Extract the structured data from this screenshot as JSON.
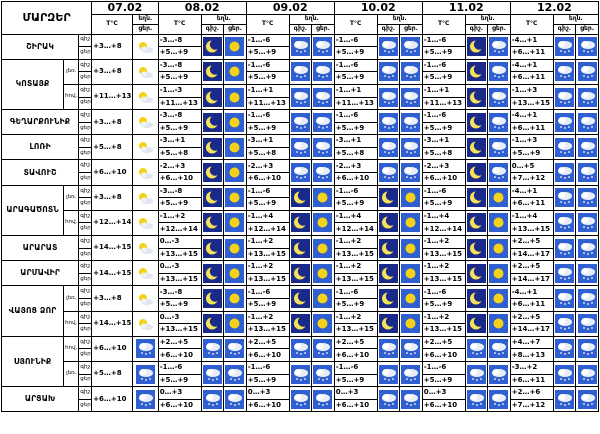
{
  "header": {
    "title": "ՄԱՐԶԵՐ",
    "col1": {
      "date": "07.02",
      "temp": "T°C",
      "weather": "եղն.",
      "day": "ցեր."
    },
    "dates": [
      "08.02",
      "09.02",
      "10.02",
      "11.02",
      "12.02"
    ],
    "temp_label": "T°C",
    "weather_label": "եղն.",
    "night_label": "գիշ.",
    "day_label": "ցեր."
  },
  "rows": [
    {
      "region": "ՇԻՐԱԿ",
      "sub": "",
      "span": 2,
      "l1": "գիշ.",
      "l2": "ցեր.",
      "d1": "+3…+8",
      "i1": "sun-cloud",
      "days": [
        {
          "n": "-3…-8",
          "d": "+5…+9",
          "in": "moon",
          "id": "sun"
        },
        {
          "n": "-1…-6",
          "d": "+5…+9",
          "in": "snowcloud",
          "id": "snowcloud"
        },
        {
          "n": "-1…-6",
          "d": "+5…+9",
          "in": "snowcloud",
          "id": "snowcloud"
        },
        {
          "n": "-1…-6",
          "d": "+5…+9",
          "in": "moon",
          "id": "snowcloud"
        },
        {
          "n": "-4…+1",
          "d": "+6…+11",
          "in": "snowcloud",
          "id": "snowcloud"
        }
      ]
    },
    {
      "region": "ԿՈՏԱՅՔ",
      "sub": "լեռ.",
      "span": 2,
      "l1": "գիշ.",
      "l2": "ցեր.",
      "d1": "+3…+8",
      "i1": "sun-cloud",
      "days": [
        {
          "n": "-3…-8",
          "d": "+5…+9",
          "in": "moon",
          "id": "sun"
        },
        {
          "n": "-1…-6",
          "d": "+5…+9",
          "in": "snowcloud",
          "id": "snowcloud"
        },
        {
          "n": "-1…-6",
          "d": "+5…+9",
          "in": "snowcloud",
          "id": "snowcloud"
        },
        {
          "n": "-1…-6",
          "d": "+5…+9",
          "in": "moon",
          "id": "snowcloud"
        },
        {
          "n": "-4…+1",
          "d": "+6…+11",
          "in": "snowcloud",
          "id": "snowcloud"
        }
      ]
    },
    {
      "region": "",
      "sub": "հով.",
      "span": 2,
      "l1": "գիշ.",
      "l2": "ցեր.",
      "d1": "+11…+13",
      "i1": "sun-cloud",
      "days": [
        {
          "n": "-1…-3",
          "d": "+11…+13",
          "in": "moon",
          "id": "sun"
        },
        {
          "n": "-1…+1",
          "d": "+11…+13",
          "in": "snowcloud",
          "id": "snowcloud"
        },
        {
          "n": "-1…+1",
          "d": "+11…+13",
          "in": "snowcloud",
          "id": "snowcloud"
        },
        {
          "n": "-1…+1",
          "d": "+11…+13",
          "in": "moon",
          "id": "snowcloud"
        },
        {
          "n": "-1…+3",
          "d": "+13…+15",
          "in": "snowcloud",
          "id": "snowcloud"
        }
      ]
    },
    {
      "region": "ԳԵՂԱՐՔՈՒՆԻՔ",
      "sub": "",
      "span": 2,
      "l1": "գիշ.",
      "l2": "ցեր.",
      "d1": "+3…+8",
      "i1": "sun-cloud",
      "days": [
        {
          "n": "-3…-8",
          "d": "+5…+9",
          "in": "moon",
          "id": "sun"
        },
        {
          "n": "-1…-6",
          "d": "+5…+9",
          "in": "snowcloud",
          "id": "snowcloud"
        },
        {
          "n": "-1…-6",
          "d": "+5…+9",
          "in": "snowcloud",
          "id": "snowcloud"
        },
        {
          "n": "-1…-6",
          "d": "+5…+9",
          "in": "moon",
          "id": "snowcloud"
        },
        {
          "n": "-4…+1",
          "d": "+6…+11",
          "in": "snowcloud",
          "id": "snowcloud"
        }
      ]
    },
    {
      "region": "ԼՈՌԻ",
      "sub": "",
      "span": 2,
      "l1": "գիշ.",
      "l2": "ցեր.",
      "d1": "+5…+8",
      "i1": "sun-cloud",
      "days": [
        {
          "n": "-3…+1",
          "d": "+5…+8",
          "in": "moon",
          "id": "sun"
        },
        {
          "n": "-3…+1",
          "d": "+5…+8",
          "in": "snowcloud",
          "id": "snowcloud"
        },
        {
          "n": "-3…+1",
          "d": "+5…+8",
          "in": "snowcloud",
          "id": "snowcloud"
        },
        {
          "n": "-3…+1",
          "d": "+5…+8",
          "in": "moon",
          "id": "snowcloud"
        },
        {
          "n": "-1…+3",
          "d": "+5…+9",
          "in": "snowcloud",
          "id": "snowcloud"
        }
      ]
    },
    {
      "region": "ՏԱՎՈՒՇ",
      "sub": "",
      "span": 2,
      "l1": "գիշ.",
      "l2": "ցեր.",
      "d1": "+6…+10",
      "i1": "sun-cloud",
      "days": [
        {
          "n": "-2…+3",
          "d": "+6…+10",
          "in": "moon",
          "id": "sun"
        },
        {
          "n": "-2…+3",
          "d": "+6…+10",
          "in": "snowcloud",
          "id": "snowcloud"
        },
        {
          "n": "-2…+3",
          "d": "+6…+10",
          "in": "snowcloud",
          "id": "snowcloud"
        },
        {
          "n": "-2…+3",
          "d": "+6…+10",
          "in": "moon",
          "id": "snowcloud"
        },
        {
          "n": "0…+5",
          "d": "+7…+12",
          "in": "snowcloud",
          "id": "snowcloud"
        }
      ]
    },
    {
      "region": "ԱՐԱԳԱԾՈՏՆ",
      "sub": "լեռ.",
      "span": 2,
      "l1": "գիշ.",
      "l2": "ցեր.",
      "d1": "+3…+8",
      "i1": "sun-cloud",
      "days": [
        {
          "n": "-3…-8",
          "d": "+5…+9",
          "in": "moon",
          "id": "sun"
        },
        {
          "n": "-1…-6",
          "d": "+5…+9",
          "in": "moon",
          "id": "sun"
        },
        {
          "n": "-1…-6",
          "d": "+5…+9",
          "in": "moon",
          "id": "sun"
        },
        {
          "n": "-1…-6",
          "d": "+5…+9",
          "in": "moon",
          "id": "sun"
        },
        {
          "n": "-4…+1",
          "d": "+6…+11",
          "in": "snowcloud",
          "id": "snowcloud"
        }
      ]
    },
    {
      "region": "",
      "sub": "հով.",
      "span": 2,
      "l1": "գիշ.",
      "l2": "ցեր.",
      "d1": "+12…+14",
      "i1": "sun-cloud",
      "days": [
        {
          "n": "-1…+2",
          "d": "+12…+14",
          "in": "moon",
          "id": "sun"
        },
        {
          "n": "-1…+4",
          "d": "+12…+14",
          "in": "moon",
          "id": "sun"
        },
        {
          "n": "-1…+4",
          "d": "+12…+14",
          "in": "moon",
          "id": "sun"
        },
        {
          "n": "-1…+4",
          "d": "+12…+14",
          "in": "moon",
          "id": "sun"
        },
        {
          "n": "-1…+4",
          "d": "+13…+15",
          "in": "snowcloud",
          "id": "snowcloud"
        }
      ]
    },
    {
      "region": "ԱՐԱՐԱՏ",
      "sub": "",
      "span": 2,
      "l1": "գիշ.",
      "l2": "ցեր.",
      "d1": "+14…+15",
      "i1": "sun-cloud",
      "days": [
        {
          "n": "0…-3",
          "d": "+13…+15",
          "in": "moon",
          "id": "sun"
        },
        {
          "n": "-1…+2",
          "d": "+13…+15",
          "in": "moon",
          "id": "sun"
        },
        {
          "n": "-1…+2",
          "d": "+13…+15",
          "in": "moon",
          "id": "sun"
        },
        {
          "n": "-1…+2",
          "d": "+13…+15",
          "in": "moon",
          "id": "sun"
        },
        {
          "n": "+2…+5",
          "d": "+14…+17",
          "in": "snowcloud",
          "id": "snowcloud"
        }
      ]
    },
    {
      "region": "ԱՐՄԱՎԻՐ",
      "sub": "",
      "span": 2,
      "l1": "գիշ.",
      "l2": "ցեր.",
      "d1": "+14…+15",
      "i1": "sun-cloud",
      "days": [
        {
          "n": "0…-3",
          "d": "+13…+15",
          "in": "moon",
          "id": "sun"
        },
        {
          "n": "-1…+2",
          "d": "+13…+15",
          "in": "moon",
          "id": "sun"
        },
        {
          "n": "-1…+2",
          "d": "+13…+15",
          "in": "moon",
          "id": "sun"
        },
        {
          "n": "-1…+2",
          "d": "+13…+15",
          "in": "moon",
          "id": "sun"
        },
        {
          "n": "+2…+5",
          "d": "+14…+17",
          "in": "snowcloud",
          "id": "snowcloud"
        }
      ]
    },
    {
      "region": "ՎԱՅՈՑ ՁՈՐ",
      "sub": "լեռ.",
      "span": 2,
      "l1": "գիշ.",
      "l2": "ցեր.",
      "d1": "+3…+8",
      "i1": "sun-cloud",
      "days": [
        {
          "n": "-3…-8",
          "d": "+5…+9",
          "in": "moon",
          "id": "sun"
        },
        {
          "n": "-1…-6",
          "d": "+5…+9",
          "in": "moon",
          "id": "sun"
        },
        {
          "n": "-1…-6",
          "d": "+5…+9",
          "in": "moon",
          "id": "sun"
        },
        {
          "n": "-1…-6",
          "d": "+5…+9",
          "in": "moon",
          "id": "sun"
        },
        {
          "n": "-4…+1",
          "d": "+6…+11",
          "in": "snowcloud",
          "id": "snowcloud"
        }
      ]
    },
    {
      "region": "",
      "sub": "հով.",
      "span": 2,
      "l1": "գիշ.",
      "l2": "ցեր.",
      "d1": "+14…+15",
      "i1": "sun-cloud",
      "days": [
        {
          "n": "0…-3",
          "d": "+13…+15",
          "in": "moon",
          "id": "sun"
        },
        {
          "n": "-1…+2",
          "d": "+13…+15",
          "in": "moon",
          "id": "sun"
        },
        {
          "n": "-1…+2",
          "d": "+13…+15",
          "in": "moon",
          "id": "sun"
        },
        {
          "n": "-1…+2",
          "d": "+13…+15",
          "in": "moon",
          "id": "sun"
        },
        {
          "n": "+2…+5",
          "d": "+14…+17",
          "in": "snowcloud",
          "id": "snowcloud"
        }
      ]
    },
    {
      "region": "ՍՅՈՒՆԻՔ",
      "sub": "հով.",
      "span": 2,
      "l1": "գիշ.",
      "l2": "ցեր.",
      "d1": "+6…+10",
      "i1": "snowcloud",
      "days": [
        {
          "n": "+2…+5",
          "d": "+6…+10",
          "in": "snowcloud",
          "id": "snowcloud"
        },
        {
          "n": "+2…+5",
          "d": "+6…+10",
          "in": "snowcloud",
          "id": "snowcloud"
        },
        {
          "n": "+2…+5",
          "d": "+6…+10",
          "in": "snowcloud",
          "id": "snowcloud"
        },
        {
          "n": "+2…+5",
          "d": "+6…+10",
          "in": "snowcloud",
          "id": "snowcloud"
        },
        {
          "n": "+4…+7",
          "d": "+8…+13",
          "in": "snowcloud",
          "id": "snowcloud"
        }
      ]
    },
    {
      "region": "",
      "sub": "լեռ.",
      "span": 2,
      "l1": "գիշ.",
      "l2": "ցեր.",
      "d1": "+5…+8",
      "i1": "snowcloud",
      "days": [
        {
          "n": "-1…-6",
          "d": "+5…+9",
          "in": "snowcloud",
          "id": "snowcloud"
        },
        {
          "n": "-1…-6",
          "d": "+5…+9",
          "in": "snowcloud",
          "id": "snowcloud"
        },
        {
          "n": "-1…-6",
          "d": "+5…+9",
          "in": "snowcloud",
          "id": "snowcloud"
        },
        {
          "n": "-1…-6",
          "d": "+5…+9",
          "in": "snowcloud",
          "id": "snowcloud"
        },
        {
          "n": "-3…+2",
          "d": "+6…+11",
          "in": "snowcloud",
          "id": "snowcloud"
        }
      ]
    },
    {
      "region": "ԱՐՑԱԽ",
      "sub": "",
      "span": 2,
      "l1": "գիշ.",
      "l2": "ցեր.",
      "d1": "+6…+10",
      "i1": "snowcloud",
      "days": [
        {
          "n": "0…+3",
          "d": "+6…+10",
          "in": "snowcloud",
          "id": "snowcloud"
        },
        {
          "n": "0…+3",
          "d": "+6…+10",
          "in": "snowcloud",
          "id": "snowcloud"
        },
        {
          "n": "0…+3",
          "d": "+6…+10",
          "in": "snowcloud",
          "id": "snowcloud"
        },
        {
          "n": "0…+3",
          "d": "+6…+10",
          "in": "snowcloud",
          "id": "snowcloud"
        },
        {
          "n": "+2…+6",
          "d": "+7…+12",
          "in": "snowcloud",
          "id": "snowcloud"
        }
      ]
    }
  ],
  "colors": {
    "sky": "#2f5fd0",
    "sky_light": "#9fc0f0",
    "sun": "#f5d21a",
    "moon": "#f5e25a",
    "night": "#1a2a8a"
  }
}
